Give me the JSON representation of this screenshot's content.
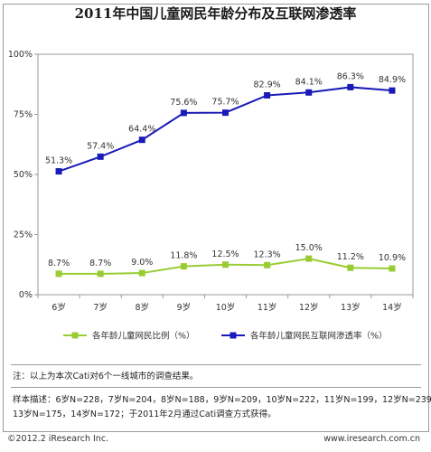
{
  "title": "2011年中国儿童网民年龄分布及互联网渗透率",
  "chart_data": {
    "type": "line",
    "categories": [
      "6岁",
      "7岁",
      "8岁",
      "9岁",
      "10岁",
      "11岁",
      "12岁",
      "13岁",
      "14岁"
    ],
    "ylim": [
      0,
      100
    ],
    "yticks": [
      "0%",
      "25%",
      "50%",
      "75%",
      "100%"
    ],
    "grid": false,
    "legend_position": "bottom",
    "series": [
      {
        "name": "各年龄儿童网民比例（%）",
        "color": "#99cc33",
        "marker": "square",
        "values": [
          8.7,
          8.7,
          9.0,
          11.8,
          12.5,
          12.3,
          15.0,
          11.2,
          10.9
        ],
        "labels": [
          "8.7%",
          "8.7%",
          "9.0%",
          "11.8%",
          "12.5%",
          "12.3%",
          "15.0%",
          "11.2%",
          "10.9%"
        ]
      },
      {
        "name": "各年龄儿童网民互联网渗透率（%）",
        "color": "#1a1ab8",
        "marker": "square",
        "values": [
          51.3,
          57.4,
          64.4,
          75.6,
          75.7,
          82.9,
          84.1,
          86.3,
          84.9
        ],
        "labels": [
          "51.3%",
          "57.4%",
          "64.4%",
          "75.6%",
          "75.7%",
          "82.9%",
          "84.1%",
          "86.3%",
          "84.9%"
        ]
      }
    ]
  },
  "notes": {
    "note": "注：以上为本次Cati对6个一线城市的调查结果。",
    "sample_line1": "样本描述：6岁N=228，7岁N=204，8岁N=188，9岁N=209，10岁N=222，11岁N=199，12岁N=239，",
    "sample_line2": "13岁N=175，14岁N=172；于2011年2月通过Cati调查方式获得。"
  },
  "footer": {
    "copyright": "©2012.2 iResearch Inc.",
    "url": "www.iresearch.com.cn"
  }
}
